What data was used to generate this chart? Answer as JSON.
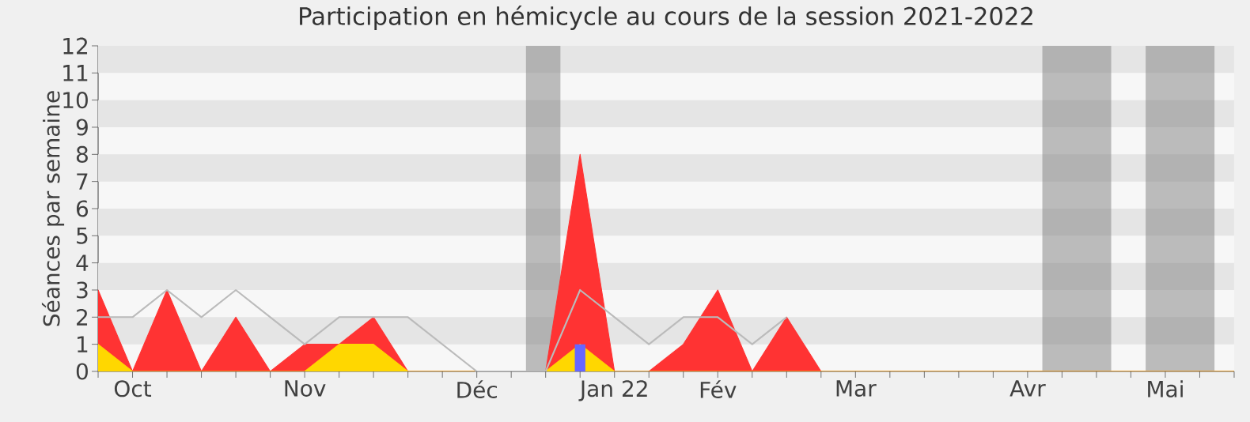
{
  "chart_data": {
    "type": "area",
    "title": "Participation en hémicycle au cours de la session 2021-2022",
    "ylabel": "Séances par semaine",
    "x": [
      "2021-09-28",
      "2021-10-05",
      "2021-10-12",
      "2021-10-19",
      "2021-10-26",
      "2021-11-02",
      "2021-11-09",
      "2021-11-16",
      "2021-11-23",
      "2021-11-30",
      "2021-12-07",
      "2021-12-14",
      "2021-12-21",
      "2021-12-28",
      "2022-01-04",
      "2022-01-11",
      "2022-01-18",
      "2022-01-25",
      "2022-02-01",
      "2022-02-08",
      "2022-02-15",
      "2022-02-22",
      "2022-03-01",
      "2022-03-08",
      "2022-03-15",
      "2022-03-22",
      "2022-03-29",
      "2022-04-05",
      "2022-04-12",
      "2022-04-19",
      "2022-04-26",
      "2022-05-03",
      "2022-05-10",
      "2022-05-17"
    ],
    "xlim": [
      "2021-09-28",
      "2022-05-17"
    ],
    "xticks": [
      {
        "value": "2021-09-28",
        "label": null
      },
      {
        "value": "2021-10-05",
        "label": "Oct"
      },
      {
        "value": "2021-10-12",
        "label": null
      },
      {
        "value": "2021-10-19",
        "label": null
      },
      {
        "value": "2021-10-26",
        "label": null
      },
      {
        "value": "2021-11-02",
        "label": null
      },
      {
        "value": "2021-11-09",
        "label": "Nov"
      },
      {
        "value": "2021-11-16",
        "label": null
      },
      {
        "value": "2021-11-23",
        "label": null
      },
      {
        "value": "2021-11-30",
        "label": null
      },
      {
        "value": "2021-12-07",
        "label": null
      },
      {
        "value": "2021-12-14",
        "label": "Déc"
      },
      {
        "value": "2021-12-21",
        "label": null
      },
      {
        "value": "2021-12-28",
        "label": null
      },
      {
        "value": "2022-01-04",
        "label": null
      },
      {
        "value": "2022-01-11",
        "label": "Jan 22"
      },
      {
        "value": "2022-01-18",
        "label": null
      },
      {
        "value": "2022-01-25",
        "label": null
      },
      {
        "value": "2022-02-01",
        "label": "Fév"
      },
      {
        "value": "2022-02-08",
        "label": null
      },
      {
        "value": "2022-02-15",
        "label": null
      },
      {
        "value": "2022-02-22",
        "label": null
      },
      {
        "value": "2022-03-01",
        "label": "Mar"
      },
      {
        "value": "2022-03-08",
        "label": null
      },
      {
        "value": "2022-03-15",
        "label": null
      },
      {
        "value": "2022-03-22",
        "label": null
      },
      {
        "value": "2022-03-29",
        "label": null
      },
      {
        "value": "2022-04-05",
        "label": "Avr"
      },
      {
        "value": "2022-04-12",
        "label": null
      },
      {
        "value": "2022-04-19",
        "label": null
      },
      {
        "value": "2022-04-26",
        "label": null
      },
      {
        "value": "2022-05-03",
        "label": "Mai"
      },
      {
        "value": "2022-05-10",
        "label": null
      },
      {
        "value": "2022-05-17",
        "label": null
      }
    ],
    "series": [
      {
        "color": "#ff3333",
        "values": [
          3,
          0,
          3,
          0,
          2,
          0,
          1,
          1,
          2,
          0,
          0,
          0,
          0,
          0,
          8,
          0,
          0,
          1,
          3,
          0,
          2,
          0,
          0,
          0,
          0,
          0,
          0,
          0,
          0,
          0,
          0,
          0,
          0,
          0
        ]
      },
      {
        "type": "area",
        "color": "#ffd700",
        "values": [
          1,
          0,
          0,
          0,
          0,
          0,
          0,
          1,
          1,
          0,
          0,
          0,
          0,
          0,
          1,
          0,
          0,
          0,
          0,
          0,
          0,
          0,
          0,
          0,
          0,
          0,
          0,
          0,
          0,
          0,
          0,
          0,
          0,
          0
        ]
      },
      {
        "type": "line",
        "color": "#bbbbbb",
        "values": [
          2,
          2,
          3,
          2,
          3,
          2,
          1,
          2,
          2,
          2,
          1,
          0,
          0,
          0,
          3,
          2,
          1,
          2,
          2,
          1,
          2,
          null,
          null,
          null,
          null,
          null,
          null,
          null,
          null,
          null,
          null,
          null,
          null,
          null
        ]
      },
      {
        "type": "bar",
        "color": "#6666ff",
        "values": [
          null,
          null,
          null,
          null,
          null,
          null,
          null,
          null,
          null,
          null,
          null,
          null,
          null,
          null,
          1,
          null,
          null,
          null,
          null,
          null,
          null,
          null,
          null,
          null,
          null,
          null,
          null,
          null,
          null,
          null,
          null,
          null,
          null,
          null
        ]
      }
    ],
    "ylim": [
      0,
      12
    ],
    "yticks": [
      0,
      1,
      2,
      3,
      4,
      5,
      6,
      7,
      8,
      9,
      10,
      11,
      12
    ],
    "grid": false,
    "bands": [
      {
        "axis": "x",
        "from": "2021-12-24",
        "to": "2021-12-31",
        "color": "#808080"
      },
      {
        "axis": "x",
        "from": "2022-04-08",
        "to": "2022-04-22",
        "color": "#808080"
      },
      {
        "axis": "x",
        "from": "2022-04-29",
        "to": "2022-05-13",
        "color": "#808080"
      }
    ]
  }
}
